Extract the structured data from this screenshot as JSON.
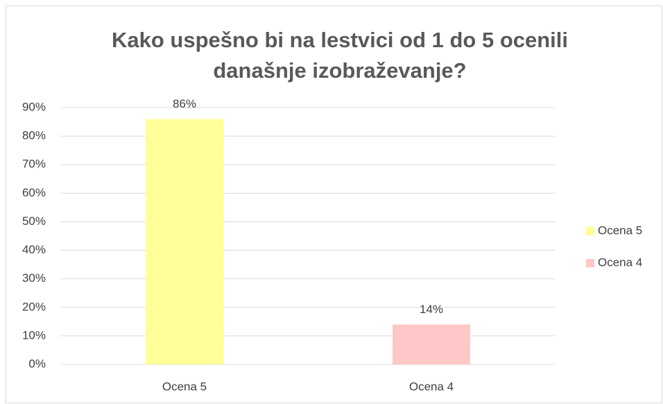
{
  "chart_data": {
    "type": "bar",
    "title": [
      "Kako uspešno bi na lestvici od 1 do 5 ocenili",
      "današnje izobraževanje?"
    ],
    "categories": [
      "Ocena 5",
      "Ocena 4"
    ],
    "values": [
      86,
      14
    ],
    "value_labels": [
      "86%",
      "14%"
    ],
    "colors": [
      "#ffff99",
      "#ffc7c7"
    ],
    "ylim": [
      0,
      90
    ],
    "yticks": [
      {
        "value": 0,
        "label": "0%"
      },
      {
        "value": 10,
        "label": "10%"
      },
      {
        "value": 20,
        "label": "20%"
      },
      {
        "value": 30,
        "label": "30%"
      },
      {
        "value": 40,
        "label": "40%"
      },
      {
        "value": 50,
        "label": "50%"
      },
      {
        "value": 60,
        "label": "60%"
      },
      {
        "value": 70,
        "label": "70%"
      },
      {
        "value": 80,
        "label": "80%"
      },
      {
        "value": 90,
        "label": "90%"
      }
    ],
    "grid": true,
    "legend": "right"
  }
}
